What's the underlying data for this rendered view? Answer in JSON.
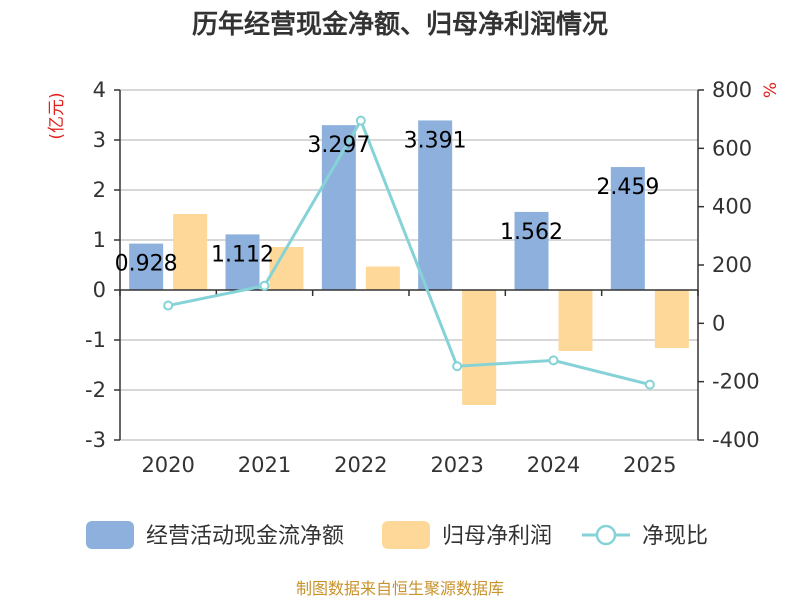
{
  "chart_data": {
    "type": "bar",
    "title": "历年经营现金净额、归母净利润情况",
    "categories": [
      "2020",
      "2021",
      "2022",
      "2023",
      "2024",
      "2025"
    ],
    "series": [
      {
        "name": "经营活动现金流净额",
        "type": "bar",
        "axis": "left",
        "color": "#8eb0dc",
        "values": [
          0.928,
          1.112,
          3.297,
          3.391,
          1.562,
          2.459
        ],
        "labels": [
          "0.928",
          "1.112",
          "3.297",
          "3.391",
          "1.562",
          "2.459"
        ]
      },
      {
        "name": "归母净利润",
        "type": "bar",
        "axis": "left",
        "color": "#fdd899",
        "values": [
          1.52,
          0.86,
          0.47,
          -2.3,
          -1.22,
          -1.16
        ]
      },
      {
        "name": "净现比",
        "type": "line",
        "axis": "right",
        "color": "#86d3d7",
        "values": [
          61,
          129,
          695,
          -147,
          -127,
          -210
        ]
      }
    ],
    "y_left": {
      "unit": "(亿元)",
      "min": -3,
      "max": 4,
      "ticks": [
        "-3",
        "-2",
        "-1",
        "0",
        "1",
        "2",
        "3",
        "4"
      ]
    },
    "y_right": {
      "unit": "%",
      "min": -400,
      "max": 800,
      "ticks": [
        "-400",
        "-200",
        "0",
        "200",
        "400",
        "600",
        "800"
      ]
    },
    "unit_color": "#e0201c",
    "grid": true,
    "legend_position": "bottom"
  },
  "source_text": "制图数据来自恒生聚源数据库",
  "source_color": "#c8932c"
}
